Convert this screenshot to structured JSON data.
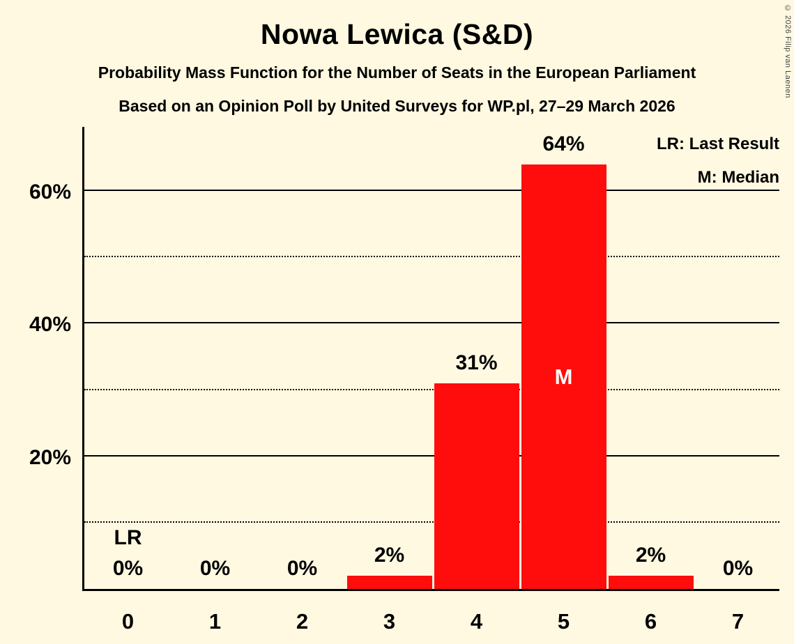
{
  "title": "Nowa Lewica (S&D)",
  "subtitle_line1": "Probability Mass Function for the Number of Seats in the European Parliament",
  "subtitle_line2": "Based on an Opinion Poll by United Surveys for WP.pl, 27–29 March 2026",
  "copyright": "© 2026 Filip van Laenen",
  "legend": {
    "last_result": "LR: Last Result",
    "median": "M: Median"
  },
  "colors": {
    "background": "#FFF9E1",
    "bar": "#FF0D0D",
    "text": "#000000",
    "median_text": "#FFFFFF"
  },
  "chart_data": {
    "type": "bar",
    "title": "Nowa Lewica (S&D)",
    "categories": [
      "0",
      "1",
      "2",
      "3",
      "4",
      "5",
      "6",
      "7"
    ],
    "values": [
      0,
      0,
      0,
      2,
      31,
      64,
      2,
      0
    ],
    "value_labels": [
      "0%",
      "0%",
      "0%",
      "2%",
      "31%",
      "64%",
      "2%",
      "0%"
    ],
    "ylim": [
      0,
      70
    ],
    "yticks": [
      {
        "value": 20,
        "label": "20%"
      },
      {
        "value": 40,
        "label": "40%"
      },
      {
        "value": 60,
        "label": "60%"
      }
    ],
    "solid_gridlines": [
      20,
      40,
      60
    ],
    "dotted_gridlines": [
      10,
      30,
      50
    ],
    "median_category": "5",
    "median_marker": "M",
    "last_result_category": "0",
    "last_result_marker": "LR",
    "legend_position": "top-right",
    "grid": true
  }
}
